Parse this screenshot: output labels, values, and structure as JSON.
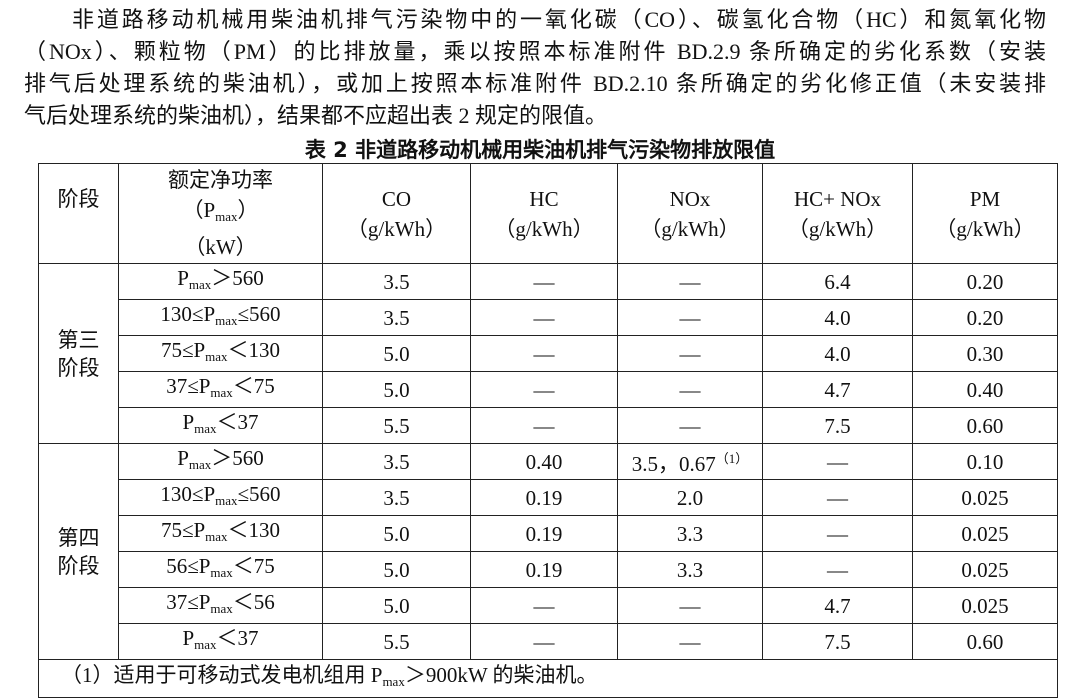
{
  "paragraph": [
    "非道路移动机械用柴油机排气污染物中的一氧化碳（CO）、碳氢化合物（HC）和氮氧化物",
    "（NOx）、颗粒物（PM）的比排放量，乘以按照本标准附件 BD.2.9 条所确定的劣化系数（安装",
    "排气后处理系统的柴油机），或加上按照本标准附件 BD.2.10 条所确定的劣化修正值（未安装排",
    "气后处理系统的柴油机），结果都不应超出表 2 规定的限值。"
  ],
  "table": {
    "title": "表 2  非道路移动机械用柴油机排气污染物排放限值",
    "header": {
      "stage": "阶段",
      "power": {
        "line1": "额定净功率",
        "line2": {
          "pre": "（P",
          "sub": "max",
          "post": "）"
        },
        "line3": "（kW）"
      },
      "columns": [
        {
          "name": "CO",
          "unit": "（g/kWh）"
        },
        {
          "name": "HC",
          "unit": "（g/kWh）"
        },
        {
          "name": "NOx",
          "unit": "（g/kWh）"
        },
        {
          "name": "HC+ NOx",
          "unit": "（g/kWh）"
        },
        {
          "name": "PM",
          "unit": "（g/kWh）"
        }
      ]
    },
    "groups": [
      {
        "stage": [
          "第三",
          "阶段"
        ],
        "rows": [
          {
            "power": {
              "pre": "P",
              "sub": "max",
              "post": "＞560"
            },
            "values": [
              "3.5",
              "—",
              "—",
              "6.4",
              "0.20"
            ]
          },
          {
            "power": {
              "pre": "130≤P",
              "sub": "max",
              "post": "≤560"
            },
            "values": [
              "3.5",
              "—",
              "—",
              "4.0",
              "0.20"
            ]
          },
          {
            "power": {
              "pre": "75≤P",
              "sub": "max",
              "post": "＜130"
            },
            "values": [
              "5.0",
              "—",
              "—",
              "4.0",
              "0.30"
            ]
          },
          {
            "power": {
              "pre": "37≤P",
              "sub": "max",
              "post": "＜75"
            },
            "values": [
              "5.0",
              "—",
              "—",
              "4.7",
              "0.40"
            ]
          },
          {
            "power": {
              "pre": "P",
              "sub": "max",
              "post": "＜37"
            },
            "values": [
              "5.5",
              "—",
              "—",
              "7.5",
              "0.60"
            ]
          }
        ]
      },
      {
        "stage": [
          "第四",
          "阶段"
        ],
        "rows": [
          {
            "power": {
              "pre": "P",
              "sub": "max",
              "post": "＞560"
            },
            "values": [
              "3.5",
              "0.40",
              {
                "text": "3.5，0.67",
                "note": "（1）"
              },
              "—",
              "0.10"
            ]
          },
          {
            "power": {
              "pre": "130≤P",
              "sub": "max",
              "post": "≤560"
            },
            "values": [
              "3.5",
              "0.19",
              "2.0",
              "—",
              "0.025"
            ]
          },
          {
            "power": {
              "pre": "75≤P",
              "sub": "max",
              "post": "＜130"
            },
            "values": [
              "5.0",
              "0.19",
              "3.3",
              "—",
              "0.025"
            ]
          },
          {
            "power": {
              "pre": "56≤P",
              "sub": "max",
              "post": "＜75"
            },
            "values": [
              "5.0",
              "0.19",
              "3.3",
              "—",
              "0.025"
            ]
          },
          {
            "power": {
              "pre": "37≤P",
              "sub": "max",
              "post": "＜56"
            },
            "values": [
              "5.0",
              "—",
              "—",
              "4.7",
              "0.025"
            ]
          },
          {
            "power": {
              "pre": "P",
              "sub": "max",
              "post": "＜37"
            },
            "values": [
              "5.5",
              "—",
              "—",
              "7.5",
              "0.60"
            ]
          }
        ]
      }
    ],
    "footnote": {
      "pre": "（1）适用于可移动式发电机组用 P",
      "sub": "max",
      "post": "＞900kW 的柴油机。"
    }
  }
}
